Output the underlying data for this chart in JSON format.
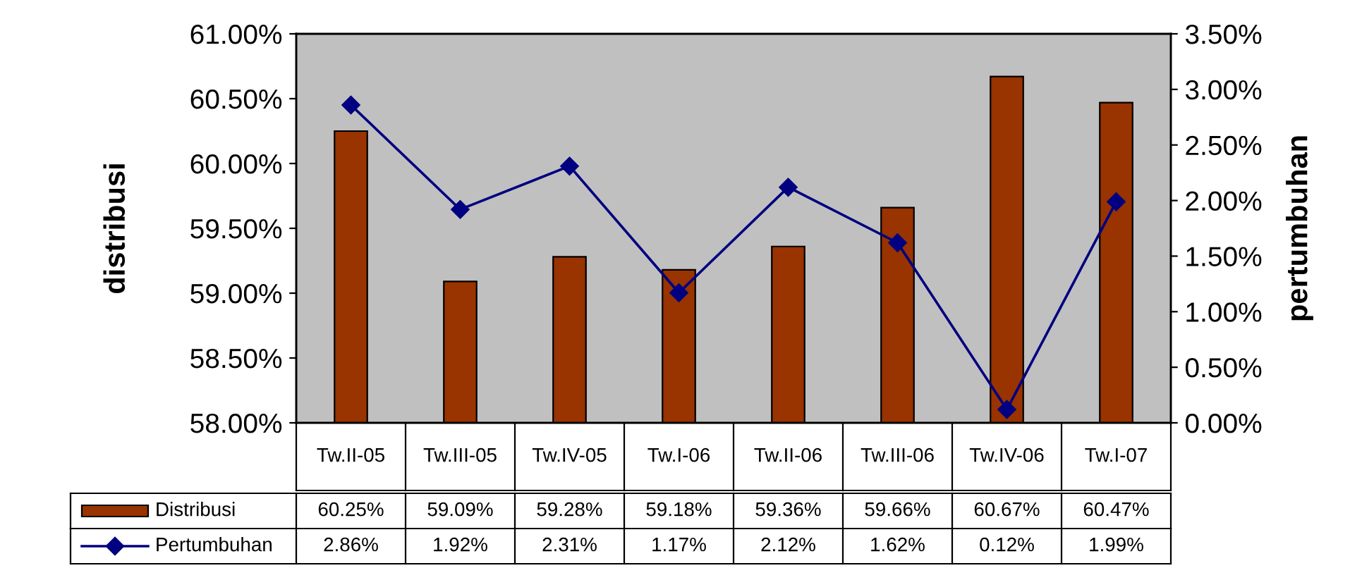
{
  "chart_data": {
    "type": "bar",
    "ylabel": "distribusi",
    "y2label": "pertumbuhan",
    "categories": [
      "Tw.II-05",
      "Tw.III-05",
      "Tw.IV-05",
      "Tw.I-06",
      "Tw.II-06",
      "Tw.III-06",
      "Tw.IV-06",
      "Tw.I-07"
    ],
    "series": [
      {
        "name": "Distribusi",
        "color": "#993300",
        "values": [
          60.25,
          59.09,
          59.28,
          59.18,
          59.36,
          59.66,
          60.67,
          60.47
        ],
        "value_labels": [
          "60.25%",
          "59.09%",
          "59.28%",
          "59.18%",
          "59.36%",
          "59.66%",
          "60.67%",
          "60.47%"
        ]
      },
      {
        "name": "Pertumbuhan",
        "type": "line",
        "axis": "y2",
        "color": "#000080",
        "marker": "diamond",
        "values": [
          2.86,
          1.92,
          2.31,
          1.17,
          2.12,
          1.62,
          0.12,
          1.99
        ],
        "value_labels": [
          "2.86%",
          "1.92%",
          "2.31%",
          "1.17%",
          "2.12%",
          "1.62%",
          "0.12%",
          "1.99%"
        ]
      }
    ],
    "ylim": [
      58,
      61
    ],
    "yticks": [
      {
        "value": 58,
        "label": "58.00%"
      },
      {
        "value": 58.5,
        "label": "58.50%"
      },
      {
        "value": 59,
        "label": "59.00%"
      },
      {
        "value": 59.5,
        "label": "59.50%"
      },
      {
        "value": 60,
        "label": "60.00%"
      },
      {
        "value": 60.5,
        "label": "60.50%"
      },
      {
        "value": 61,
        "label": "61.00%"
      }
    ],
    "y2lim": [
      0,
      3.5
    ],
    "y2ticks": [
      {
        "value": 0,
        "label": "0.00%"
      },
      {
        "value": 0.5,
        "label": "0.50%"
      },
      {
        "value": 1,
        "label": "1.00%"
      },
      {
        "value": 1.5,
        "label": "1.50%"
      },
      {
        "value": 2,
        "label": "2.00%"
      },
      {
        "value": 2.5,
        "label": "2.50%"
      },
      {
        "value": 3,
        "label": "3.00%"
      },
      {
        "value": 3.5,
        "label": "3.50%"
      }
    ],
    "grid": false,
    "legend": "bottom"
  }
}
